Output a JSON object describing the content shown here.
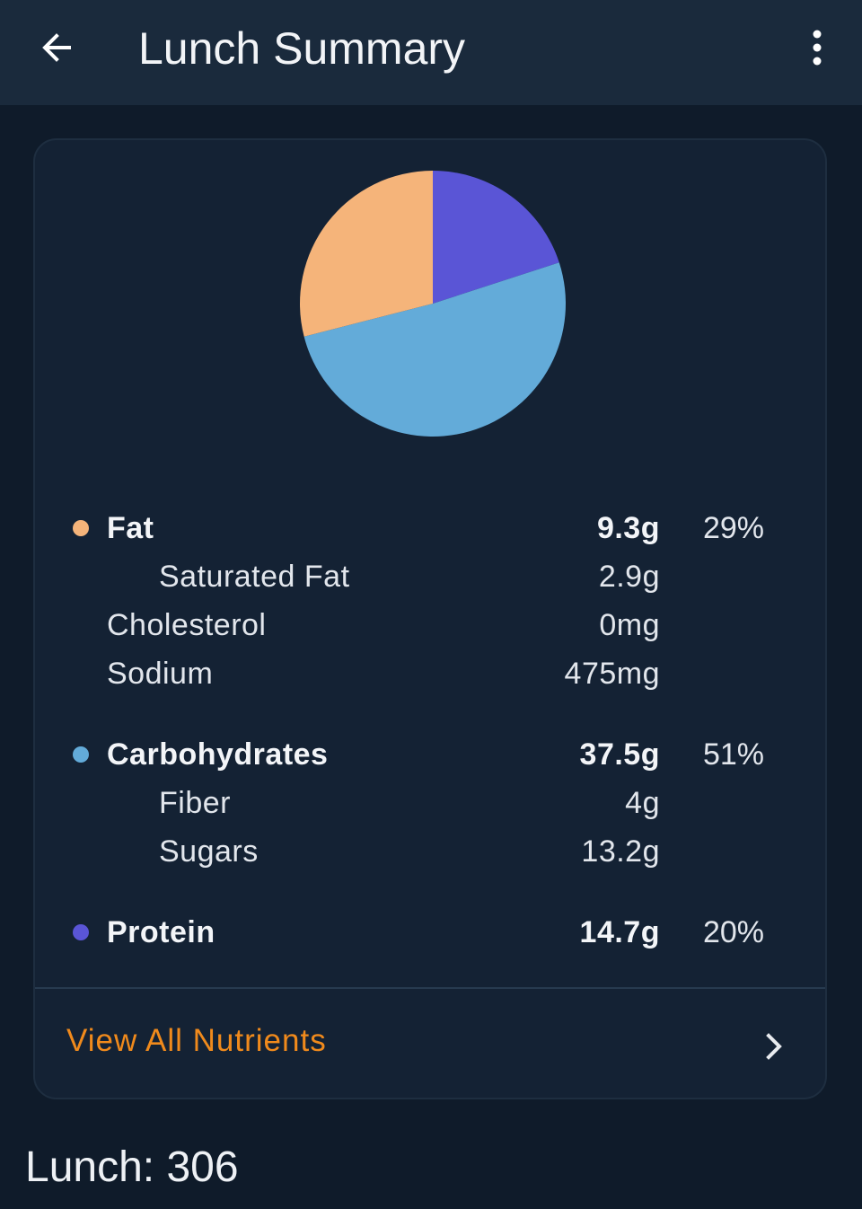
{
  "appbar": {
    "title": "Lunch Summary",
    "back_icon": "arrow-left-icon",
    "more_icon": "more-vertical-icon"
  },
  "chart_data": {
    "type": "pie",
    "labels": [
      "Protein",
      "Carbohydrates",
      "Fat"
    ],
    "values": [
      20,
      51,
      29
    ],
    "colors": [
      "#5a55d6",
      "#63abd9",
      "#f5b47a"
    ]
  },
  "nutrients": {
    "fat": {
      "label": "Fat",
      "amount": "9.3g",
      "percent": "29%",
      "color": "#f5b47a"
    },
    "saturated_fat": {
      "label": "Saturated Fat",
      "amount": "2.9g"
    },
    "cholesterol": {
      "label": "Cholesterol",
      "amount": "0mg"
    },
    "sodium": {
      "label": "Sodium",
      "amount": "475mg"
    },
    "carbohydrates": {
      "label": "Carbohydrates",
      "amount": "37.5g",
      "percent": "51%",
      "color": "#63abd9"
    },
    "fiber": {
      "label": "Fiber",
      "amount": "4g"
    },
    "sugars": {
      "label": "Sugars",
      "amount": "13.2g"
    },
    "protein": {
      "label": "Protein",
      "amount": "14.7g",
      "percent": "20%",
      "color": "#5a55d6"
    }
  },
  "view_all": {
    "label": "View All Nutrients",
    "icon": "chevron-right-icon"
  },
  "footer": {
    "total": "Lunch: 306"
  }
}
